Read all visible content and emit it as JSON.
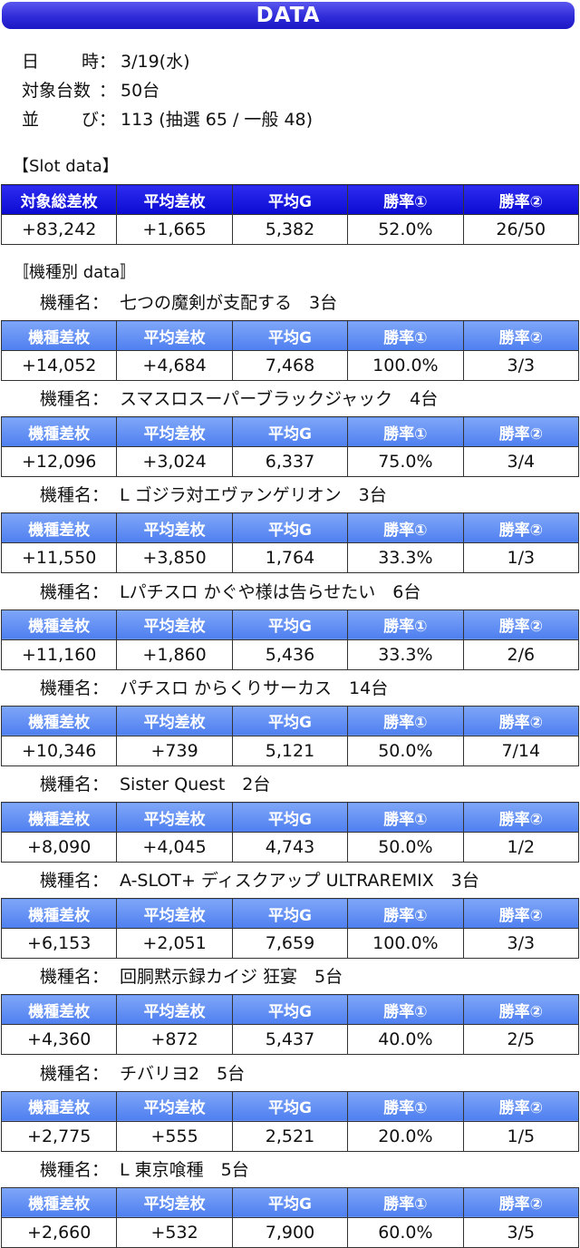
{
  "banner": "DATA",
  "info": [
    {
      "label_a": "日",
      "label_b": "時",
      "colon": "：",
      "value": "3/19(水)"
    },
    {
      "label_a": "対象台数",
      "label_b": "",
      "colon": "：",
      "value": "50台"
    },
    {
      "label_a": "並",
      "label_b": "び",
      "colon": "：",
      "value": "113 (抽選 65 / 一般 48)"
    }
  ],
  "slot_title": "【Slot data】",
  "slot_headers": [
    "対象総差枚",
    "平均差枚",
    "平均G",
    "勝率①",
    "勝率②"
  ],
  "slot_row": [
    "+83,242",
    "+1,665",
    "5,382",
    "52.0%",
    "26/50"
  ],
  "model_title": "〚機種別 data〛",
  "model_label": "機種名：",
  "model_headers": [
    "機種差枚",
    "平均差枚",
    "平均G",
    "勝率①",
    "勝率②"
  ],
  "models": [
    {
      "name": "七つの魔剣が支配する　3台",
      "row": [
        "+14,052",
        "+4,684",
        "7,468",
        "100.0%",
        "3/3"
      ]
    },
    {
      "name": "スマスロスーパーブラックジャック　4台",
      "row": [
        "+12,096",
        "+3,024",
        "6,337",
        "75.0%",
        "3/4"
      ]
    },
    {
      "name": "L ゴジラ対エヴァンゲリオン　3台",
      "row": [
        "+11,550",
        "+3,850",
        "1,764",
        "33.3%",
        "1/3"
      ]
    },
    {
      "name": "Lパチスロ かぐや様は告らせたい　6台",
      "row": [
        "+11,160",
        "+1,860",
        "5,436",
        "33.3%",
        "2/6"
      ]
    },
    {
      "name": "パチスロ からくりサーカス　14台",
      "row": [
        "+10,346",
        "+739",
        "5,121",
        "50.0%",
        "7/14"
      ]
    },
    {
      "name": "Sister Quest　2台",
      "row": [
        "+8,090",
        "+4,045",
        "4,743",
        "50.0%",
        "1/2"
      ]
    },
    {
      "name": "A-SLOT+ ディスクアップ ULTRAREMIX　3台",
      "row": [
        "+6,153",
        "+2,051",
        "7,659",
        "100.0%",
        "3/3"
      ]
    },
    {
      "name": "回胴黙示録カイジ 狂宴　5台",
      "row": [
        "+4,360",
        "+872",
        "5,437",
        "40.0%",
        "2/5"
      ]
    },
    {
      "name": "チバリヨ2　5台",
      "row": [
        "+2,775",
        "+555",
        "2,521",
        "20.0%",
        "1/5"
      ]
    },
    {
      "name": "L 東京喰種　5台",
      "row": [
        "+2,660",
        "+532",
        "7,900",
        "60.0%",
        "3/5"
      ]
    }
  ]
}
